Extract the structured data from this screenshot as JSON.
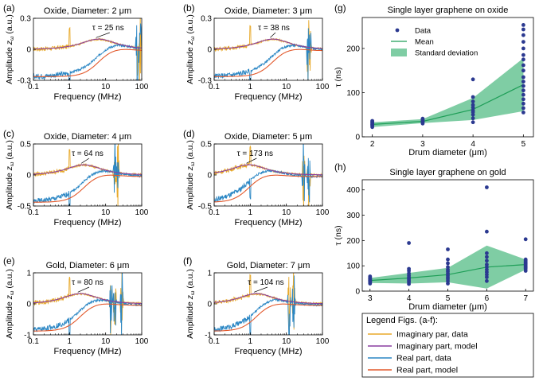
{
  "legend_box": {
    "title": "Legend Figs. (a-f):",
    "entries": [
      {
        "label": "Imaginary par, data",
        "color": "#e8a92a"
      },
      {
        "label": "Imaginary part, model",
        "color": "#8a3fa0"
      },
      {
        "label": "Real part, data",
        "color": "#2a86c4"
      },
      {
        "label": "Real part, model",
        "color": "#e2582b"
      }
    ]
  },
  "chart_data": [
    {
      "panel": "(a)",
      "type": "line",
      "title": "Oxide, Diameter: 2 μm",
      "annotation": "τ = 25 ns",
      "tau_ns": 25,
      "xlabel": "Frequency (MHz)",
      "ylabel": "Amplitude zω (a.u.)",
      "x_scale": "log",
      "xlim": [
        0.1,
        100
      ],
      "ylim": [
        -0.3,
        0.3
      ],
      "xticks": [
        "0.1",
        "1",
        "10",
        "100"
      ],
      "yticks": [
        "-0.3",
        "0",
        "0.3"
      ],
      "series": [
        {
          "name": "Imaginary par, data"
        },
        {
          "name": "Imaginary part, model",
          "peak_MHz": 6.4
        },
        {
          "name": "Real part, data"
        },
        {
          "name": "Real part, model"
        }
      ]
    },
    {
      "panel": "(b)",
      "type": "line",
      "title": "Oxide, Diameter: 3 μm",
      "annotation": "τ = 38 ns",
      "tau_ns": 38,
      "xlabel": "Frequency (MHz)",
      "ylabel": "Amplitude zω (a.u.)",
      "x_scale": "log",
      "xlim": [
        0.1,
        100
      ],
      "ylim": [
        -0.3,
        0.3
      ],
      "xticks": [
        "0.1",
        "1",
        "10",
        "100"
      ],
      "yticks": [
        "-0.3",
        "0",
        "0.3"
      ],
      "series": [
        {
          "name": "Imaginary par, data"
        },
        {
          "name": "Imaginary part, model",
          "peak_MHz": 4.2
        },
        {
          "name": "Real part, data"
        },
        {
          "name": "Real part, model"
        }
      ]
    },
    {
      "panel": "(c)",
      "type": "line",
      "title": "Oxide, Diameter: 4 μm",
      "annotation": "τ = 64 ns",
      "tau_ns": 64,
      "xlabel": "Frequency (MHz)",
      "ylabel": "Amplitude zω (a.u.)",
      "x_scale": "log",
      "xlim": [
        0.1,
        100
      ],
      "ylim": [
        -0.5,
        0.5
      ],
      "xticks": [
        "0.1",
        "1",
        "10",
        "100"
      ],
      "yticks": [
        "-0.5",
        "0",
        "0.5"
      ],
      "series": [
        {
          "name": "Imaginary par, data"
        },
        {
          "name": "Imaginary part, model",
          "peak_MHz": 2.5
        },
        {
          "name": "Real part, data"
        },
        {
          "name": "Real part, model"
        }
      ]
    },
    {
      "panel": "(d)",
      "type": "line",
      "title": "Oxide, Diameter: 5 μm",
      "annotation": "τ = 173 ns",
      "tau_ns": 173,
      "xlabel": "Frequency (MHz)",
      "ylabel": "Amplitude zω (a.u.)",
      "x_scale": "log",
      "xlim": [
        0.1,
        100
      ],
      "ylim": [
        -0.5,
        0.5
      ],
      "xticks": [
        "0.1",
        "1",
        "10",
        "100"
      ],
      "yticks": [
        "-0.5",
        "0",
        "0.5"
      ],
      "series": [
        {
          "name": "Imaginary par, data"
        },
        {
          "name": "Imaginary part, model",
          "peak_MHz": 0.92
        },
        {
          "name": "Real part, data"
        },
        {
          "name": "Real part, model"
        }
      ]
    },
    {
      "panel": "(e)",
      "type": "line",
      "title": "Gold, Diameter: 6 μm",
      "annotation": "τ = 80 ns",
      "tau_ns": 80,
      "xlabel": "Frequency (MHz)",
      "ylabel": "Amplitude zω (a.u.)",
      "x_scale": "log",
      "xlim": [
        0.1,
        100
      ],
      "ylim": [
        -1,
        1
      ],
      "xticks": [
        "0.1",
        "1",
        "10",
        "100"
      ],
      "yticks": [
        "-1",
        "0",
        "1"
      ],
      "series": [
        {
          "name": "Imaginary par, data"
        },
        {
          "name": "Imaginary part, model",
          "peak_MHz": 2.0
        },
        {
          "name": "Real part, data"
        },
        {
          "name": "Real part, model"
        }
      ]
    },
    {
      "panel": "(f)",
      "type": "line",
      "title": "Gold, Diameter: 7 μm",
      "annotation": "τ = 104 ns",
      "tau_ns": 104,
      "xlabel": "Frequency (MHz)",
      "ylabel": "Amplitude zω (a.u.)",
      "x_scale": "log",
      "xlim": [
        0.1,
        100
      ],
      "ylim": [
        -1,
        1
      ],
      "xticks": [
        "0.1",
        "1",
        "10",
        "100"
      ],
      "yticks": [
        "-1",
        "0",
        "1"
      ],
      "series": [
        {
          "name": "Imaginary par, data"
        },
        {
          "name": "Imaginary part, model",
          "peak_MHz": 1.5
        },
        {
          "name": "Real part, data"
        },
        {
          "name": "Real part, model"
        }
      ]
    },
    {
      "panel": "(g)",
      "type": "scatter",
      "title": "Single layer graphene on oxide",
      "xlabel": "Drum diameter (μm)",
      "ylabel": "τ (ns)",
      "xlim": [
        1.8,
        5.2
      ],
      "ylim": [
        0,
        270
      ],
      "xticks": [
        "2",
        "3",
        "4",
        "5"
      ],
      "yticks": [
        "0",
        "100",
        "200"
      ],
      "legend": [
        "Data",
        "Mean",
        "Standard deviation"
      ],
      "legend_position": "top-left",
      "points": [
        {
          "x": 2,
          "y": [
            22,
            25,
            27,
            28,
            30,
            32,
            34,
            36
          ]
        },
        {
          "x": 3,
          "y": [
            30,
            33,
            35,
            37,
            39,
            41
          ]
        },
        {
          "x": 4,
          "y": [
            33,
            42,
            50,
            56,
            60,
            66,
            72,
            80,
            90,
            130
          ]
        },
        {
          "x": 5,
          "y": [
            55,
            65,
            75,
            85,
            95,
            105,
            115,
            125,
            135,
            150,
            162,
            175,
            185,
            200,
            215,
            230,
            243,
            253
          ]
        }
      ],
      "mean": [
        {
          "x": 2,
          "y": 28
        },
        {
          "x": 3,
          "y": 35
        },
        {
          "x": 4,
          "y": 62
        },
        {
          "x": 5,
          "y": 118
        }
      ],
      "std_band": [
        {
          "x": 2,
          "lo": 22,
          "hi": 33
        },
        {
          "x": 3,
          "lo": 31,
          "hi": 40
        },
        {
          "x": 4,
          "lo": 38,
          "hi": 88
        },
        {
          "x": 5,
          "lo": 58,
          "hi": 178
        }
      ]
    },
    {
      "panel": "(h)",
      "type": "scatter",
      "title": "Single layer graphene on gold",
      "xlabel": "Drum diameter (μm)",
      "ylabel": "τ (ns)",
      "xlim": [
        2.8,
        7.2
      ],
      "ylim": [
        0,
        440
      ],
      "xticks": [
        "3",
        "4",
        "5",
        "6",
        "7"
      ],
      "yticks": [
        "0",
        "100",
        "200",
        "300",
        "400"
      ],
      "points": [
        {
          "x": 3,
          "y": [
            30,
            33,
            36,
            38,
            40,
            42,
            44,
            46,
            48,
            50,
            52,
            55,
            58
          ]
        },
        {
          "x": 4,
          "y": [
            28,
            35,
            40,
            45,
            50,
            55,
            62,
            70,
            80,
            88,
            190
          ]
        },
        {
          "x": 5,
          "y": [
            30,
            40,
            48,
            55,
            62,
            70,
            78,
            85,
            95,
            110,
            125,
            165
          ]
        },
        {
          "x": 6,
          "y": [
            40,
            55,
            65,
            75,
            85,
            95,
            105,
            120,
            135,
            150,
            235,
            410
          ]
        },
        {
          "x": 7,
          "y": [
            80,
            88,
            92,
            96,
            100,
            104,
            108,
            112,
            116,
            120,
            125,
            205
          ]
        }
      ],
      "mean": [
        {
          "x": 3,
          "y": 42
        },
        {
          "x": 4,
          "y": 52
        },
        {
          "x": 5,
          "y": 65
        },
        {
          "x": 6,
          "y": 95
        },
        {
          "x": 7,
          "y": 105
        }
      ],
      "std_band": [
        {
          "x": 3,
          "lo": 32,
          "hi": 52
        },
        {
          "x": 4,
          "lo": 30,
          "hi": 72
        },
        {
          "x": 5,
          "lo": 35,
          "hi": 92
        },
        {
          "x": 6,
          "lo": 10,
          "hi": 180
        },
        {
          "x": 7,
          "lo": 85,
          "hi": 125
        }
      ]
    }
  ]
}
